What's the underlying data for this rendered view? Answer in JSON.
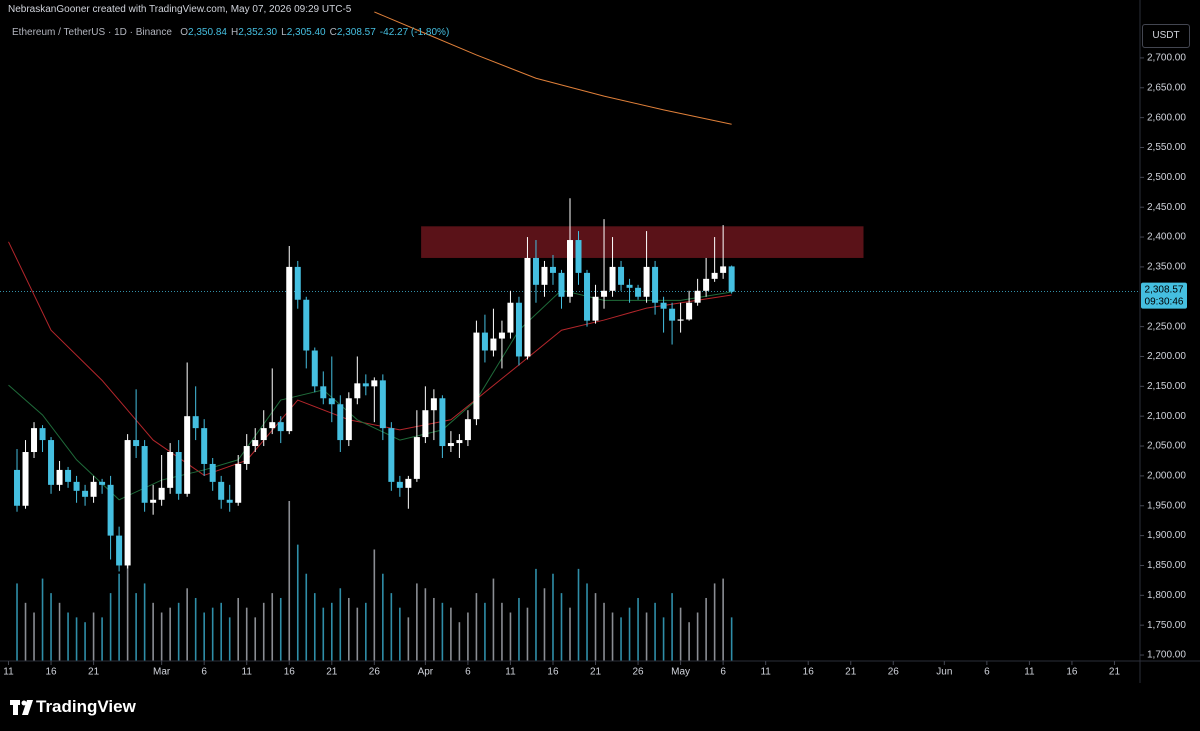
{
  "page": {
    "attribution": "NebraskanGooner created with TradingView.com, May 07, 2026 09:29 UTC-5",
    "brand": "TradingView"
  },
  "chart_data": {
    "type": "candlestick",
    "legend": {
      "symbol": "Ethereum / TetherUS · 1D · Binance",
      "items": [
        {
          "key": "O",
          "label": "2,350.84"
        },
        {
          "key": "H",
          "label": "2,352.30"
        },
        {
          "key": "L",
          "label": "2,305.40"
        },
        {
          "key": "C",
          "label": "2,308.57"
        }
      ],
      "change": "-42.27 (-1.80%)"
    },
    "currency": "USDT",
    "up_color": "#ffffff",
    "down_color": "#45bfe0",
    "volume_up_color": "#8a8d93",
    "volume_down_color": "#2f8ea8",
    "xlim": [
      41,
      175
    ],
    "ylim": [
      1690,
      2797
    ],
    "xticks": [
      {
        "value": 42,
        "label": "11"
      },
      {
        "value": 47,
        "label": "16"
      },
      {
        "value": 52,
        "label": "21"
      },
      {
        "value": 60,
        "label": "Mar"
      },
      {
        "value": 65,
        "label": "6"
      },
      {
        "value": 70,
        "label": "11"
      },
      {
        "value": 75,
        "label": "16"
      },
      {
        "value": 80,
        "label": "21"
      },
      {
        "value": 85,
        "label": "26"
      },
      {
        "value": 91,
        "label": "Apr"
      },
      {
        "value": 96,
        "label": "6"
      },
      {
        "value": 101,
        "label": "11"
      },
      {
        "value": 106,
        "label": "16"
      },
      {
        "value": 111,
        "label": "21"
      },
      {
        "value": 116,
        "label": "26"
      },
      {
        "value": 121,
        "label": "May"
      },
      {
        "value": 126,
        "label": "6"
      },
      {
        "value": 131,
        "label": "11"
      },
      {
        "value": 136,
        "label": "16"
      },
      {
        "value": 141,
        "label": "21"
      },
      {
        "value": 146,
        "label": "26"
      },
      {
        "value": 152,
        "label": "Jun"
      },
      {
        "value": 157,
        "label": "6"
      },
      {
        "value": 162,
        "label": "11"
      },
      {
        "value": 167,
        "label": "16"
      },
      {
        "value": 172,
        "label": "21"
      }
    ],
    "yticks": [
      {
        "value": 1700,
        "label": "1,700.00"
      },
      {
        "value": 1750,
        "label": "1,750.00"
      },
      {
        "value": 1800,
        "label": "1,800.00"
      },
      {
        "value": 1850,
        "label": "1,850.00"
      },
      {
        "value": 1900,
        "label": "1,900.00"
      },
      {
        "value": 1950,
        "label": "1,950.00"
      },
      {
        "value": 2000,
        "label": "2,000.00"
      },
      {
        "value": 2050,
        "label": "2,050.00"
      },
      {
        "value": 2100,
        "label": "2,100.00"
      },
      {
        "value": 2150,
        "label": "2,150.00"
      },
      {
        "value": 2200,
        "label": "2,200.00"
      },
      {
        "value": 2250,
        "label": "2,250.00"
      },
      {
        "value": 2350,
        "label": "2,350.00"
      },
      {
        "value": 2400,
        "label": "2,400.00"
      },
      {
        "value": 2450,
        "label": "2,450.00"
      },
      {
        "value": 2500,
        "label": "2,500.00"
      },
      {
        "value": 2550,
        "label": "2,550.00"
      },
      {
        "value": 2600,
        "label": "2,600.00"
      },
      {
        "value": 2650,
        "label": "2,650.00"
      },
      {
        "value": 2700,
        "label": "2,700.00"
      }
    ],
    "x": [
      43,
      44,
      45,
      46,
      47,
      48,
      49,
      50,
      51,
      52,
      53,
      54,
      55,
      56,
      57,
      58,
      59,
      60,
      61,
      62,
      63,
      64,
      65,
      66,
      67,
      68,
      69,
      70,
      71,
      72,
      73,
      74,
      75,
      76,
      77,
      78,
      79,
      80,
      81,
      82,
      83,
      84,
      85,
      86,
      87,
      88,
      89,
      90,
      91,
      92,
      93,
      94,
      95,
      96,
      97,
      98,
      99,
      100,
      101,
      102,
      103,
      104,
      105,
      106,
      107,
      108,
      109,
      110,
      111,
      112,
      113,
      114,
      115,
      116,
      117,
      118,
      119,
      120,
      121,
      122,
      123,
      124,
      125,
      126,
      127
    ],
    "open": [
      2010,
      1950,
      2040,
      2080,
      2060,
      1985,
      2010,
      1990,
      1975,
      1965,
      1990,
      1985,
      1900,
      1850,
      2060,
      2050,
      1955,
      1960,
      1980,
      2040,
      1970,
      2100,
      2080,
      2020,
      1990,
      1960,
      1955,
      2020,
      2050,
      2060,
      2080,
      2090,
      2075,
      2350,
      2295,
      2210,
      2150,
      2130,
      2120,
      2060,
      2130,
      2155,
      2150,
      2160,
      2080,
      1990,
      1980,
      1995,
      2065,
      2110,
      2130,
      2050,
      2055,
      2060,
      2095,
      2240,
      2210,
      2230,
      2240,
      2290,
      2200,
      2365,
      2320,
      2350,
      2340,
      2300,
      2395,
      2340,
      2260,
      2300,
      2310,
      2350,
      2320,
      2315,
      2300,
      2350,
      2290,
      2280,
      2260,
      2262,
      2290,
      2310,
      2330,
      2340,
      2350.84
    ],
    "high": [
      2045,
      2060,
      2090,
      2085,
      2065,
      2025,
      2015,
      2000,
      1985,
      2000,
      1995,
      2000,
      1915,
      2070,
      2145,
      2060,
      1985,
      2035,
      2055,
      2060,
      2190,
      2150,
      2095,
      2030,
      2000,
      1985,
      2035,
      2070,
      2080,
      2110,
      2180,
      2100,
      2385,
      2360,
      2300,
      2215,
      2175,
      2200,
      2135,
      2140,
      2200,
      2170,
      2165,
      2170,
      2090,
      2000,
      2000,
      2110,
      2150,
      2145,
      2135,
      2075,
      2070,
      2110,
      2260,
      2270,
      2280,
      2260,
      2310,
      2300,
      2400,
      2395,
      2360,
      2370,
      2345,
      2465,
      2410,
      2345,
      2320,
      2430,
      2400,
      2360,
      2330,
      2320,
      2410,
      2360,
      2300,
      2290,
      2290,
      2310,
      2330,
      2365,
      2400,
      2420,
      2352.3
    ],
    "low": [
      1940,
      1945,
      2030,
      2040,
      1970,
      1975,
      1980,
      1955,
      1950,
      1955,
      1970,
      1860,
      1840,
      1845,
      2030,
      1940,
      1935,
      1950,
      1970,
      1960,
      1965,
      2060,
      2000,
      1975,
      1945,
      1940,
      1950,
      2010,
      2040,
      2050,
      2070,
      2055,
      2070,
      2280,
      2180,
      2140,
      2120,
      2090,
      2040,
      2050,
      2120,
      2135,
      2090,
      2060,
      1975,
      1965,
      1945,
      1990,
      2055,
      2060,
      2030,
      2040,
      2030,
      2050,
      2085,
      2190,
      2200,
      2180,
      2230,
      2185,
      2195,
      2290,
      2300,
      2320,
      2280,
      2290,
      2320,
      2250,
      2255,
      2280,
      2300,
      2310,
      2290,
      2295,
      2290,
      2270,
      2240,
      2220,
      2240,
      2260,
      2285,
      2300,
      2325,
      2330,
      2305.4
    ],
    "close": [
      1950,
      2040,
      2080,
      2060,
      1985,
      2010,
      1990,
      1975,
      1965,
      1990,
      1985,
      1900,
      1850,
      2060,
      2050,
      1955,
      1960,
      1980,
      2040,
      1970,
      2100,
      2080,
      2020,
      1990,
      1960,
      1955,
      2020,
      2050,
      2060,
      2080,
      2090,
      2075,
      2350,
      2295,
      2210,
      2150,
      2130,
      2120,
      2060,
      2130,
      2155,
      2150,
      2160,
      2080,
      1990,
      1980,
      1995,
      2065,
      2110,
      2130,
      2050,
      2055,
      2060,
      2095,
      2240,
      2210,
      2230,
      2240,
      2290,
      2200,
      2365,
      2320,
      2350,
      2340,
      2300,
      2395,
      2340,
      2260,
      2300,
      2310,
      2350,
      2320,
      2315,
      2300,
      2350,
      2290,
      2280,
      2260,
      2262,
      2290,
      2310,
      2330,
      2340,
      2350.84,
      2308.57
    ],
    "volume": [
      80,
      60,
      50,
      85,
      70,
      60,
      50,
      45,
      40,
      50,
      45,
      70,
      90,
      110,
      70,
      80,
      60,
      50,
      55,
      60,
      75,
      65,
      50,
      55,
      60,
      45,
      65,
      55,
      45,
      60,
      70,
      65,
      165,
      120,
      90,
      70,
      55,
      60,
      75,
      65,
      55,
      60,
      115,
      90,
      70,
      55,
      45,
      80,
      75,
      65,
      60,
      55,
      40,
      50,
      70,
      60,
      85,
      60,
      50,
      65,
      55,
      95,
      75,
      90,
      70,
      55,
      95,
      80,
      70,
      60,
      50,
      45,
      55,
      65,
      50,
      60,
      45,
      70,
      55,
      40,
      50,
      65,
      80,
      85,
      45
    ],
    "lines": [
      {
        "color": "#e0803a",
        "x": [
          85,
          90,
          97,
          104,
          112,
          119,
          127
        ],
        "values": [
          2777,
          2747,
          2705,
          2666,
          2636,
          2613,
          2589
        ]
      },
      {
        "color": "#b3262b",
        "x": [
          42,
          47,
          53,
          59,
          65,
          70,
          76,
          82,
          88,
          94,
          102,
          107,
          112,
          117,
          127
        ],
        "values": [
          2392,
          2244,
          2160,
          2060,
          2001,
          2026,
          2127,
          2094,
          2077,
          2094,
          2186,
          2244,
          2261,
          2281,
          2303
        ]
      },
      {
        "color": "#1f6b3a",
        "x": [
          42,
          46,
          50,
          55,
          60,
          65,
          69,
          74,
          79,
          83,
          88,
          93,
          97,
          102,
          107,
          112,
          116,
          121,
          127
        ],
        "values": [
          2152,
          2102,
          2027,
          1960,
          1993,
          2010,
          2027,
          2127,
          2144,
          2094,
          2060,
          2077,
          2127,
          2244,
          2311,
          2294,
          2294,
          2294,
          2308
        ]
      }
    ],
    "zone": {
      "x": [
        90.5,
        142.5
      ],
      "y": [
        2365,
        2418
      ],
      "color": "rgba(150,30,40,0.6)"
    },
    "last_price": {
      "value": 2308.57,
      "label": "2,308.57",
      "countdown": "09:30:46"
    }
  }
}
